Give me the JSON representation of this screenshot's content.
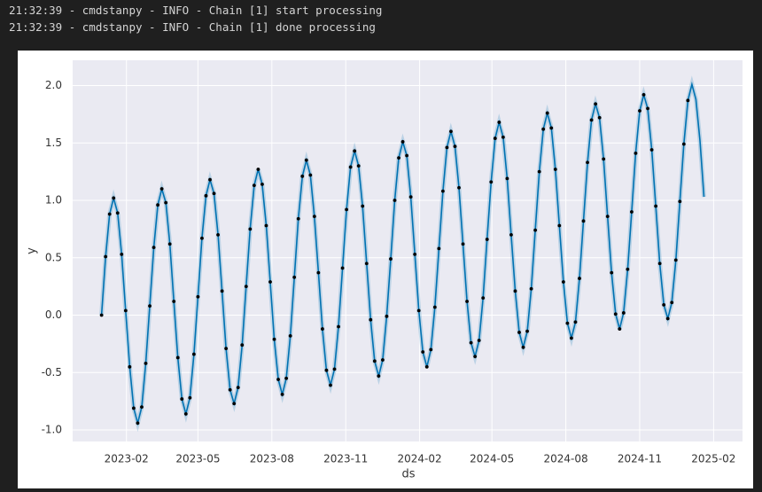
{
  "log": [
    "21:32:39 - cmdstanpy - INFO - Chain [1] start processing",
    "21:32:39 - cmdstanpy - INFO - Chain [1] done processing"
  ],
  "chart_data": {
    "type": "line",
    "xlabel": "ds",
    "ylabel": "y",
    "xlim": [
      -36,
      798
    ],
    "ylim": [
      -1.1,
      2.22
    ],
    "grid": true,
    "xticks": [
      {
        "value": 31,
        "label": "2023-02"
      },
      {
        "value": 120,
        "label": "2023-05"
      },
      {
        "value": 212,
        "label": "2023-08"
      },
      {
        "value": 304,
        "label": "2023-11"
      },
      {
        "value": 396,
        "label": "2024-02"
      },
      {
        "value": 486,
        "label": "2024-05"
      },
      {
        "value": 578,
        "label": "2024-08"
      },
      {
        "value": 670,
        "label": "2024-11"
      },
      {
        "value": 762,
        "label": "2025-02"
      }
    ],
    "yticks": [
      {
        "value": -1,
        "label": "-1.0"
      },
      {
        "value": -0.5,
        "label": "-0.5"
      },
      {
        "value": 0,
        "label": "0.0"
      },
      {
        "value": 0.5,
        "label": "0.5"
      },
      {
        "value": 1,
        "label": "1.0"
      },
      {
        "value": 1.5,
        "label": "1.5"
      },
      {
        "value": 2,
        "label": "2.0"
      }
    ],
    "series": [
      {
        "style": "dots",
        "color": "#000000",
        "x": [
          0,
          5,
          10,
          15,
          20,
          25,
          30,
          35,
          40,
          45,
          50,
          55,
          60,
          65,
          70,
          75,
          80,
          85,
          90,
          95,
          100,
          105,
          110,
          115,
          120,
          125,
          130,
          135,
          140,
          145,
          150,
          155,
          160,
          165,
          170,
          175,
          180,
          185,
          190,
          195,
          200,
          205,
          210,
          215,
          220,
          225,
          230,
          235,
          240,
          245,
          250,
          255,
          260,
          265,
          270,
          275,
          280,
          285,
          290,
          295,
          300,
          305,
          310,
          315,
          320,
          325,
          330,
          335,
          340,
          345,
          350,
          355,
          360,
          365,
          370,
          375,
          380,
          385,
          390,
          395,
          400,
          405,
          410,
          415,
          420,
          425,
          430,
          435,
          440,
          445,
          450,
          455,
          460,
          465,
          470,
          475,
          480,
          485,
          490,
          495,
          500,
          505,
          510,
          515,
          520,
          525,
          530,
          535,
          540,
          545,
          550,
          555,
          560,
          565,
          570,
          575,
          580,
          585,
          590,
          595,
          600,
          605,
          610,
          615,
          620,
          625,
          630,
          635,
          640,
          645,
          650,
          655,
          660,
          665,
          670,
          675,
          680,
          685,
          690,
          695,
          700,
          705,
          710,
          715,
          720,
          725,
          730
        ],
        "values": [
          0,
          0.51,
          0.88,
          1.02,
          0.89,
          0.53,
          0.04,
          -0.45,
          -0.81,
          -0.94,
          -0.8,
          -0.42,
          0.08,
          0.59,
          0.96,
          1.1,
          0.98,
          0.62,
          0.12,
          -0.37,
          -0.73,
          -0.86,
          -0.72,
          -0.34,
          0.16,
          0.67,
          1.04,
          1.18,
          1.06,
          0.7,
          0.21,
          -0.29,
          -0.65,
          -0.77,
          -0.63,
          -0.26,
          0.25,
          0.75,
          1.13,
          1.27,
          1.14,
          0.78,
          0.29,
          -0.21,
          -0.56,
          -0.69,
          -0.55,
          -0.18,
          0.33,
          0.84,
          1.21,
          1.35,
          1.22,
          0.86,
          0.37,
          -0.12,
          -0.48,
          -0.61,
          -0.47,
          -0.1,
          0.41,
          0.92,
          1.29,
          1.43,
          1.3,
          0.95,
          0.45,
          -0.04,
          -0.4,
          -0.53,
          -0.39,
          -0.01,
          0.49,
          1,
          1.37,
          1.51,
          1.39,
          1.03,
          0.53,
          0.04,
          -0.32,
          -0.45,
          -0.3,
          0.07,
          0.58,
          1.08,
          1.46,
          1.6,
          1.47,
          1.11,
          0.62,
          0.12,
          -0.24,
          -0.36,
          -0.22,
          0.15,
          0.66,
          1.16,
          1.54,
          1.68,
          1.55,
          1.19,
          0.7,
          0.21,
          -0.15,
          -0.28,
          -0.14,
          0.23,
          0.74,
          1.25,
          1.62,
          1.76,
          1.63,
          1.27,
          0.78,
          0.29,
          -0.07,
          -0.2,
          -0.06,
          0.32,
          0.82,
          1.33,
          1.7,
          1.84,
          1.72,
          1.36,
          0.86,
          0.37,
          0.01,
          -0.12,
          0.02,
          0.4,
          0.9,
          1.41,
          1.78,
          1.92,
          1.8,
          1.44,
          0.95,
          0.45,
          0.09,
          -0.03,
          0.11,
          0.48,
          0.99,
          1.49,
          1.87
        ]
      },
      {
        "style": "line",
        "color": "#0072b2",
        "x": [
          0,
          5,
          10,
          15,
          20,
          25,
          30,
          35,
          40,
          45,
          50,
          55,
          60,
          65,
          70,
          75,
          80,
          85,
          90,
          95,
          100,
          105,
          110,
          115,
          120,
          125,
          130,
          135,
          140,
          145,
          150,
          155,
          160,
          165,
          170,
          175,
          180,
          185,
          190,
          195,
          200,
          205,
          210,
          215,
          220,
          225,
          230,
          235,
          240,
          245,
          250,
          255,
          260,
          265,
          270,
          275,
          280,
          285,
          290,
          295,
          300,
          305,
          310,
          315,
          320,
          325,
          330,
          335,
          340,
          345,
          350,
          355,
          360,
          365,
          370,
          375,
          380,
          385,
          390,
          395,
          400,
          405,
          410,
          415,
          420,
          425,
          430,
          435,
          440,
          445,
          450,
          455,
          460,
          465,
          470,
          475,
          480,
          485,
          490,
          495,
          500,
          505,
          510,
          515,
          520,
          525,
          530,
          535,
          540,
          545,
          550,
          555,
          560,
          565,
          570,
          575,
          580,
          585,
          590,
          595,
          600,
          605,
          610,
          615,
          620,
          625,
          630,
          635,
          640,
          645,
          650,
          655,
          660,
          665,
          670,
          675,
          680,
          685,
          690,
          695,
          700,
          705,
          710,
          715,
          720,
          725,
          730,
          735,
          740,
          745,
          750
        ],
        "values": [
          0,
          0.51,
          0.88,
          1.02,
          0.89,
          0.53,
          0.04,
          -0.45,
          -0.81,
          -0.94,
          -0.8,
          -0.42,
          0.08,
          0.59,
          0.96,
          1.1,
          0.98,
          0.62,
          0.12,
          -0.37,
          -0.73,
          -0.86,
          -0.72,
          -0.34,
          0.16,
          0.67,
          1.04,
          1.18,
          1.06,
          0.7,
          0.21,
          -0.29,
          -0.65,
          -0.77,
          -0.63,
          -0.26,
          0.25,
          0.75,
          1.13,
          1.27,
          1.14,
          0.78,
          0.29,
          -0.21,
          -0.56,
          -0.69,
          -0.55,
          -0.18,
          0.33,
          0.84,
          1.21,
          1.35,
          1.22,
          0.86,
          0.37,
          -0.12,
          -0.48,
          -0.61,
          -0.47,
          -0.1,
          0.41,
          0.92,
          1.29,
          1.43,
          1.3,
          0.95,
          0.45,
          -0.04,
          -0.4,
          -0.53,
          -0.39,
          -0.01,
          0.49,
          1,
          1.37,
          1.51,
          1.39,
          1.03,
          0.53,
          0.04,
          -0.32,
          -0.45,
          -0.3,
          0.07,
          0.58,
          1.08,
          1.46,
          1.6,
          1.47,
          1.11,
          0.62,
          0.12,
          -0.24,
          -0.36,
          -0.22,
          0.15,
          0.66,
          1.16,
          1.54,
          1.68,
          1.55,
          1.19,
          0.7,
          0.21,
          -0.15,
          -0.28,
          -0.14,
          0.23,
          0.74,
          1.25,
          1.62,
          1.76,
          1.63,
          1.27,
          0.78,
          0.29,
          -0.07,
          -0.2,
          -0.06,
          0.32,
          0.82,
          1.33,
          1.7,
          1.84,
          1.72,
          1.36,
          0.86,
          0.37,
          0.01,
          -0.12,
          0.02,
          0.4,
          0.9,
          1.41,
          1.78,
          1.92,
          1.8,
          1.44,
          0.95,
          0.45,
          0.09,
          -0.03,
          0.11,
          0.48,
          0.99,
          1.49,
          1.87,
          2.01,
          1.88,
          1.52,
          1.03
        ]
      }
    ]
  }
}
